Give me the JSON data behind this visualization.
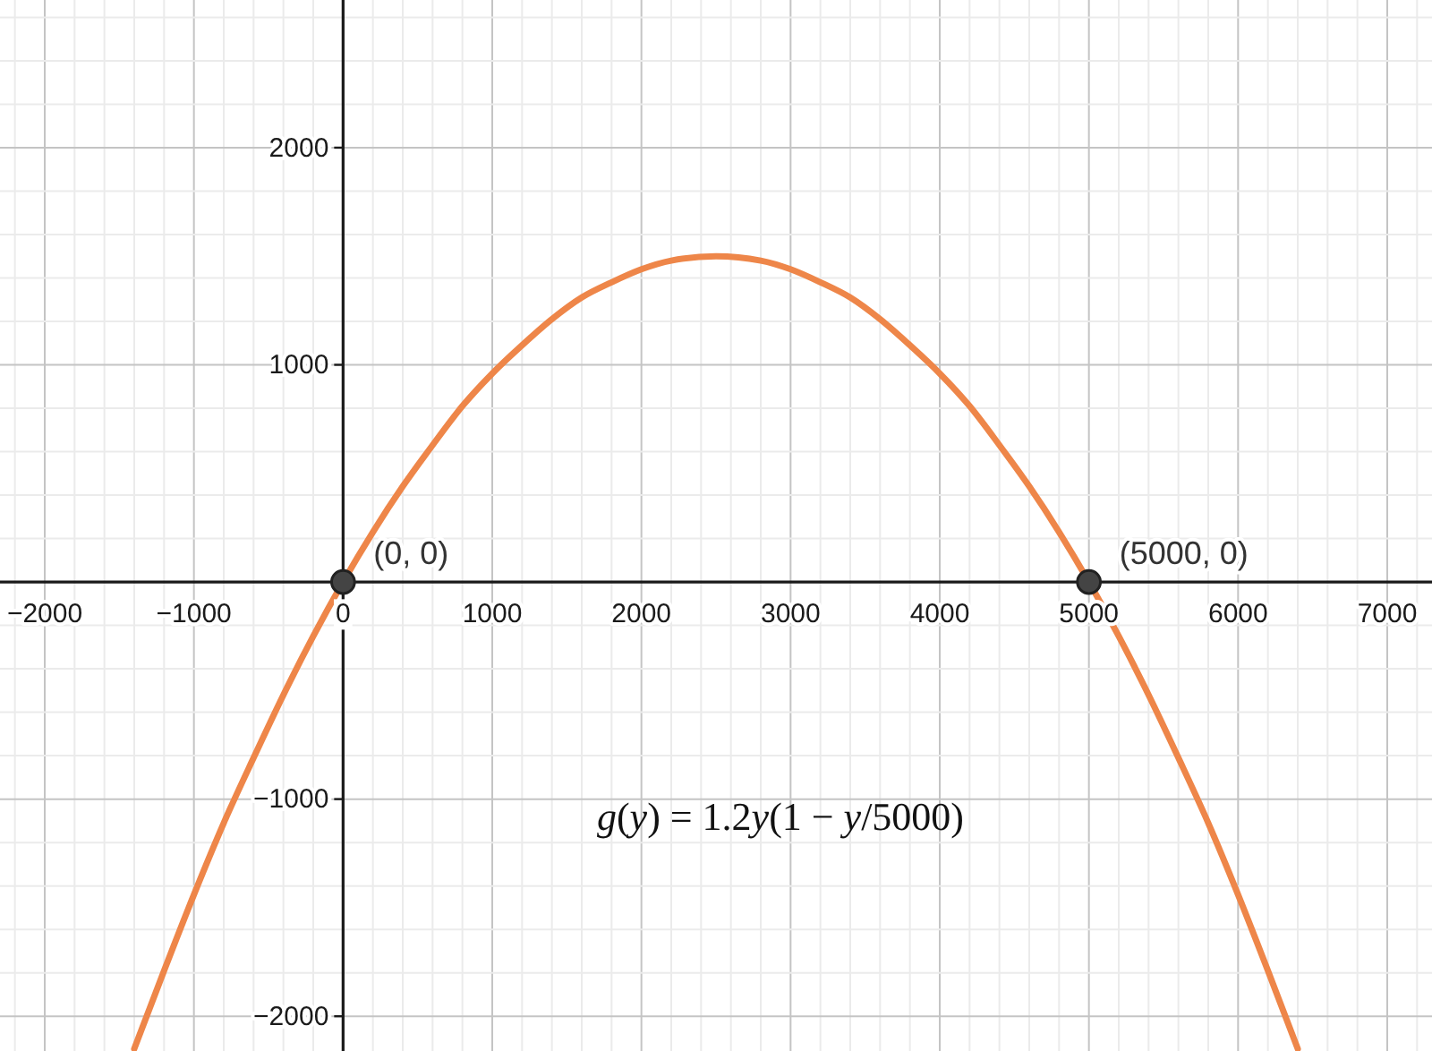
{
  "chart_data": {
    "type": "line",
    "annotations": [
      {
        "text": "(0, 0)",
        "x": 0,
        "y": 0
      },
      {
        "text": "(5000, 0)",
        "x": 5000,
        "y": 0
      },
      "g(y) = 1.2y(1 − y/5000)"
    ],
    "x": [
      -1400,
      -1200,
      -1000,
      -800,
      -600,
      -400,
      -200,
      0,
      200,
      400,
      600,
      800,
      1000,
      1200,
      1400,
      1600,
      1800,
      2000,
      2200,
      2500,
      2800,
      3000,
      3200,
      3400,
      3600,
      3800,
      4000,
      4200,
      4400,
      4600,
      4800,
      5000,
      5200,
      5400,
      5600,
      5800,
      6000,
      6200,
      6400
    ],
    "series": [
      {
        "color": "#ee8649",
        "values": [
          -2150,
          -1790,
          -1440,
          -1110,
          -810,
          -520,
          -250,
          0,
          230,
          440,
          630,
          810,
          960,
          1090,
          1210,
          1310,
          1380,
          1440,
          1480,
          1500,
          1480,
          1440,
          1380,
          1310,
          1210,
          1090,
          960,
          810,
          630,
          440,
          230,
          0,
          -250,
          -520,
          -810,
          -1110,
          -1440,
          -1790,
          -2150
        ]
      },
      {
        "type": "scatter",
        "color": "#444444",
        "marker": "circle",
        "x": [
          0,
          5000
        ],
        "values": [
          0,
          0
        ]
      }
    ],
    "xlim": [
      -2300,
      7300
    ],
    "ylim": [
      -2160,
      2680
    ],
    "xticks": [
      {
        "value": -2200,
        "label": null
      },
      {
        "value": -2000,
        "label": "−2000"
      },
      {
        "value": -1800,
        "label": null
      },
      {
        "value": -1600,
        "label": null
      },
      {
        "value": -1400,
        "label": null
      },
      {
        "value": -1200,
        "label": null
      },
      {
        "value": -1000,
        "label": "−1000"
      },
      {
        "value": -800,
        "label": null
      },
      {
        "value": -600,
        "label": null
      },
      {
        "value": -400,
        "label": null
      },
      {
        "value": -200,
        "label": null
      },
      0,
      {
        "value": 200,
        "label": null
      },
      {
        "value": 400,
        "label": null
      },
      {
        "value": 600,
        "label": null
      },
      {
        "value": 800,
        "label": null
      },
      1000,
      {
        "value": 1200,
        "label": null
      },
      {
        "value": 1400,
        "label": null
      },
      {
        "value": 1600,
        "label": null
      },
      {
        "value": 1800,
        "label": null
      },
      2000,
      {
        "value": 2200,
        "label": null
      },
      {
        "value": 2400,
        "label": null
      },
      {
        "value": 2600,
        "label": null
      },
      {
        "value": 2800,
        "label": null
      },
      3000,
      {
        "value": 3200,
        "label": null
      },
      {
        "value": 3400,
        "label": null
      },
      {
        "value": 3600,
        "label": null
      },
      {
        "value": 3800,
        "label": null
      },
      4000,
      {
        "value": 4200,
        "label": null
      },
      {
        "value": 4400,
        "label": null
      },
      {
        "value": 4600,
        "label": null
      },
      {
        "value": 4800,
        "label": null
      },
      5000,
      {
        "value": 5200,
        "label": null
      },
      {
        "value": 5400,
        "label": null
      },
      {
        "value": 5600,
        "label": null
      },
      {
        "value": 5800,
        "label": null
      },
      6000,
      {
        "value": 6200,
        "label": null
      },
      {
        "value": 6400,
        "label": null
      },
      {
        "value": 6600,
        "label": null
      },
      {
        "value": 6800,
        "label": null
      },
      7000,
      {
        "value": 7200,
        "label": null
      }
    ],
    "yticks": [
      {
        "value": -2000,
        "label": "−2000"
      },
      {
        "value": -1800,
        "label": null
      },
      {
        "value": -1600,
        "label": null
      },
      {
        "value": -1400,
        "label": null
      },
      {
        "value": -1200,
        "label": null
      },
      {
        "value": -1000,
        "label": "−1000"
      },
      {
        "value": -800,
        "label": null
      },
      {
        "value": -600,
        "label": null
      },
      {
        "value": -400,
        "label": null
      },
      {
        "value": -200,
        "label": null
      },
      {
        "value": 200,
        "label": null
      },
      {
        "value": 400,
        "label": null
      },
      {
        "value": 600,
        "label": null
      },
      {
        "value": 800,
        "label": null
      },
      1000,
      {
        "value": 1200,
        "label": null
      },
      {
        "value": 1400,
        "label": null
      },
      {
        "value": 1600,
        "label": null
      },
      {
        "value": 1800,
        "label": null
      },
      2000,
      {
        "value": 2200,
        "label": null
      },
      {
        "value": 2400,
        "label": null
      },
      {
        "value": 2600,
        "label": null
      }
    ],
    "grid": true
  }
}
